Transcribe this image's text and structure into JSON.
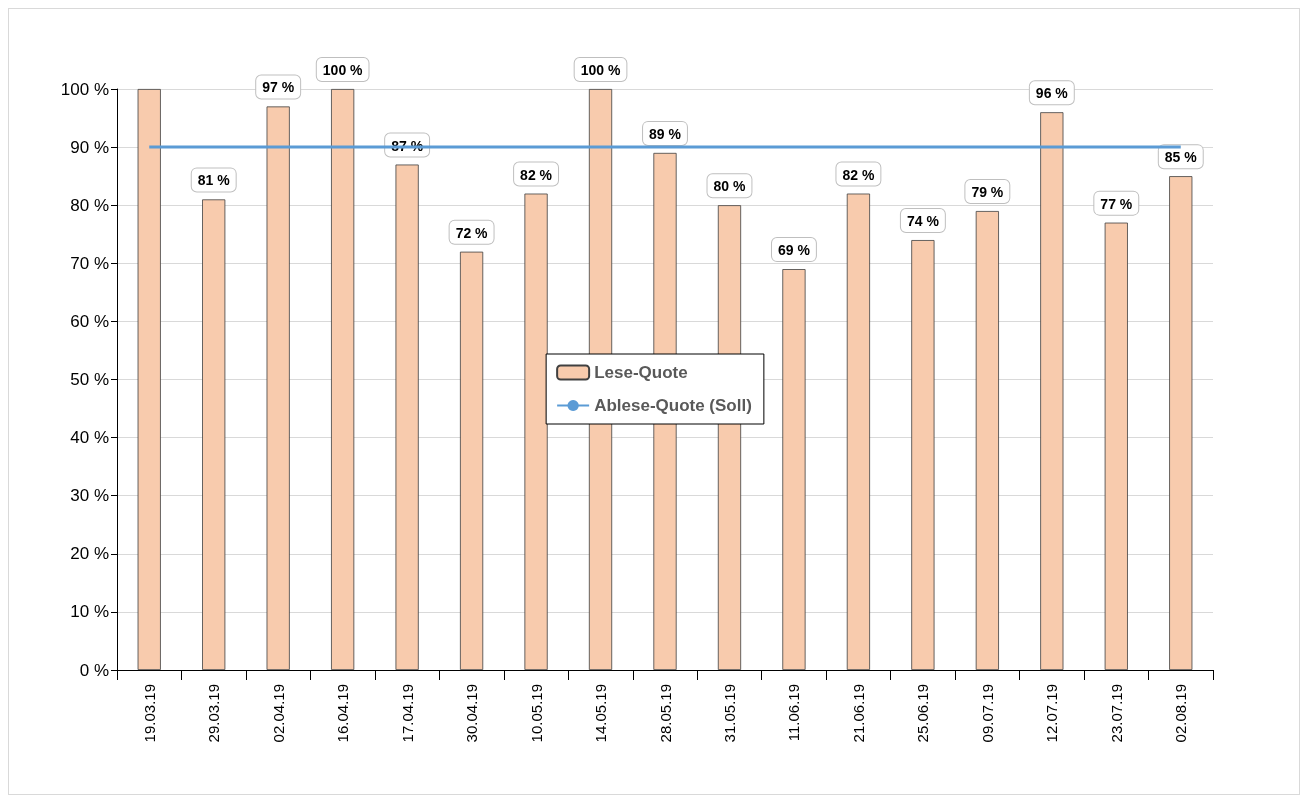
{
  "chart_data": {
    "type": "bar",
    "categories": [
      "19.03.19",
      "29.03.19",
      "02.04.19",
      "16.04.19",
      "17.04.19",
      "30.04.19",
      "10.05.19",
      "14.05.19",
      "28.05.19",
      "31.05.19",
      "11.06.19",
      "21.06.19",
      "25.06.19",
      "09.07.19",
      "12.07.19",
      "23.07.19",
      "02.08.19"
    ],
    "series": [
      {
        "name": "Lese-Quote",
        "color": "#f8cbad",
        "values": [
          100,
          81,
          97,
          100,
          87,
          72,
          82,
          100,
          89,
          80,
          69,
          82,
          74,
          79,
          96,
          77,
          85
        ],
        "value_labels": [
          null,
          "81 %",
          "97 %",
          "100 %",
          "87 %",
          "72 %",
          "82 %",
          "100 %",
          "89 %",
          "80 %",
          "69 %",
          "82 %",
          "74 %",
          "79 %",
          "96 %",
          "77 %",
          "85 %"
        ]
      },
      {
        "name": "Ablese-Quote (Soll)",
        "type": "line",
        "color": "#5b9bd5",
        "values": [
          90,
          90,
          90,
          90,
          90,
          90,
          90,
          90,
          90,
          90,
          90,
          90,
          90,
          90,
          90,
          90,
          90
        ]
      }
    ],
    "ylim": [
      0,
      100
    ],
    "yticks": [
      {
        "value": 0,
        "label": "0 %"
      },
      {
        "value": 10,
        "label": "10 %"
      },
      {
        "value": 20,
        "label": "20 %"
      },
      {
        "value": 30,
        "label": "30 %"
      },
      {
        "value": 40,
        "label": "40 %"
      },
      {
        "value": 50,
        "label": "50 %"
      },
      {
        "value": 60,
        "label": "60 %"
      },
      {
        "value": 70,
        "label": "70 %"
      },
      {
        "value": 80,
        "label": "80 %"
      },
      {
        "value": 90,
        "label": "90 %"
      },
      {
        "value": 100,
        "label": "100 %"
      }
    ],
    "grid": "y",
    "legend": "center",
    "marker": "none",
    "line_style": "solid"
  }
}
